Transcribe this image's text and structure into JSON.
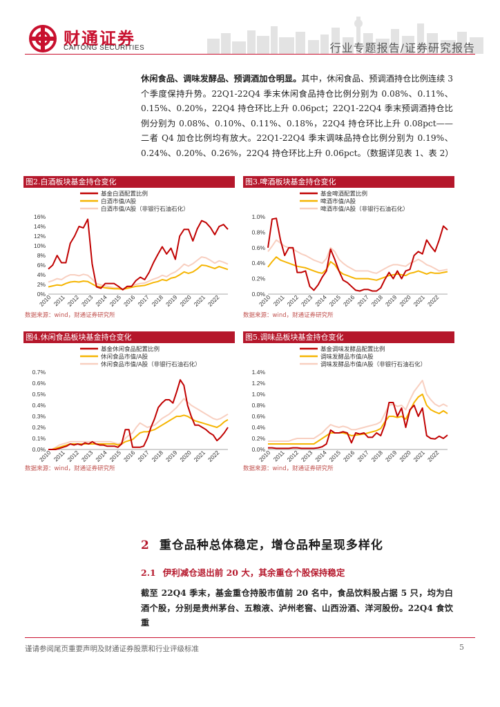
{
  "header": {
    "logo_cn": "财通证券",
    "logo_en": "CAITONG SECURITIES",
    "report_type": "行业专题报告/证券研究报告",
    "brand_color": "#c8102e"
  },
  "intro": {
    "lead": "休闲食品、调味发酵品、预调酒加仓明显。",
    "text": "其中，休闲食品、预调酒持仓比例连续 3 个季度保持升势。22Q1-22Q4 季末休闲食品持仓比例分别为 0.08%、0.11%、0.15%、0.20%，22Q4 持仓环比上升 0.06pct；22Q1-22Q4 季末预调酒持仓比例分别为 0.08%、0.10%、0.11%、0.18%，22Q4 持仓环比上升 0.08pct——二者 Q4 加仓比例均有放大。22Q1-22Q4 季末调味品持仓比例分别为 0.19%、0.24%、0.20%、0.26%，22Q4 持仓环比上升 0.06pct。（数据详见表 1、表 2）"
  },
  "chart_data": [
    {
      "type": "line",
      "title": "图2.白酒板块基金持仓变化",
      "source": "数据来源：wind，财通证券研究所",
      "x_ticks": [
        "2010",
        "2011",
        "2012",
        "2013",
        "2014",
        "2015",
        "2016",
        "2017",
        "2018",
        "2019",
        "2020",
        "2021",
        "2022"
      ],
      "ylim": [
        0,
        16
      ],
      "y_ticks": [
        "0%",
        "2%",
        "4%",
        "6%",
        "8%",
        "10%",
        "12%",
        "14%",
        "16%"
      ],
      "legend_position": "top",
      "series": [
        {
          "name": "基金白酒配置比例",
          "color": "#c00000",
          "values": [
            5.2,
            6,
            8,
            6.5,
            6.5,
            10.5,
            12,
            14,
            13.7,
            15.5,
            6.3,
            1.5,
            1.2,
            2.2,
            2.2,
            2.2,
            1.6,
            0.9,
            1.6,
            1.6,
            2.8,
            3.5,
            3,
            4.5,
            6.5,
            8.2,
            9.8,
            8.3,
            9.5,
            7.2,
            12,
            13.4,
            13.4,
            11,
            13.5,
            15.2,
            14.8,
            13.8,
            12.3,
            14,
            14.4,
            13.4
          ]
        },
        {
          "name": "白酒市值/A股",
          "color": "#f5b400",
          "values": [
            1.5,
            1.7,
            1.9,
            1.8,
            2.2,
            2.5,
            2.6,
            2.5,
            2.7,
            2.6,
            2.1,
            1.6,
            1.5,
            1.3,
            1.2,
            1.1,
            1.1,
            1.0,
            1.2,
            1.4,
            1.6,
            1.7,
            1.8,
            2.1,
            2.4,
            2.6,
            3.0,
            2.8,
            3.3,
            3.5,
            4.0,
            4.6,
            4.3,
            4.6,
            5.2,
            6.0,
            5.9,
            5.6,
            5.3,
            5.7,
            5.4,
            5.1
          ]
        },
        {
          "name": "白酒市值/A股（非银行石油石化）",
          "color": "#f8cfc0",
          "values": [
            2.5,
            2.8,
            3.2,
            3.0,
            3.6,
            4.0,
            4.0,
            3.8,
            4.1,
            3.9,
            3.1,
            2.2,
            1.9,
            1.7,
            1.5,
            1.3,
            1.3,
            1.1,
            1.4,
            1.7,
            2.0,
            2.2,
            2.3,
            2.7,
            3.1,
            3.4,
            3.9,
            3.6,
            4.2,
            4.6,
            5.3,
            6.2,
            5.8,
            6.3,
            7.0,
            7.7,
            7.5,
            7.0,
            6.4,
            6.9,
            6.6,
            6.2
          ]
        }
      ]
    },
    {
      "type": "line",
      "title": "图3.啤酒板块基金持仓变化",
      "source": "数据来源：wind，财通证券研究所",
      "x_ticks": [
        "2010",
        "2011",
        "2012",
        "2013",
        "2014",
        "2015",
        "2016",
        "2017",
        "2018",
        "2019",
        "2020",
        "2021",
        "2022"
      ],
      "ylim": [
        0,
        1
      ],
      "y_ticks": [
        "0.0%",
        "0.2%",
        "0.4%",
        "0.6%",
        "0.8%",
        "1.0%"
      ],
      "legend_position": "top",
      "series": [
        {
          "name": "基金啤酒配置比例",
          "color": "#c00000",
          "values": [
            0.6,
            0.97,
            0.98,
            0.7,
            0.5,
            0.6,
            0.6,
            0.28,
            0.28,
            0.3,
            0.1,
            0.05,
            0.12,
            0.22,
            0.3,
            0.58,
            0.45,
            0.3,
            0.18,
            0.15,
            0.1,
            0.05,
            0.04,
            0.06,
            0.06,
            0.04,
            0.04,
            0.08,
            0.19,
            0.28,
            0.2,
            0.3,
            0.2,
            0.3,
            0.32,
            0.5,
            0.55,
            0.52,
            0.7,
            0.62,
            0.55,
            0.7,
            0.88,
            0.83
          ]
        },
        {
          "name": "啤酒市值/A股",
          "color": "#f5b400",
          "values": [
            0.35,
            0.42,
            0.48,
            0.44,
            0.42,
            0.4,
            0.38,
            0.36,
            0.35,
            0.34,
            0.32,
            0.3,
            0.28,
            0.27,
            0.32,
            0.42,
            0.38,
            0.3,
            0.26,
            0.24,
            0.22,
            0.2,
            0.2,
            0.2,
            0.2,
            0.19,
            0.18,
            0.2,
            0.22,
            0.24,
            0.25,
            0.26,
            0.25,
            0.24,
            0.27,
            0.28,
            0.3,
            0.28,
            0.26,
            0.28,
            0.27,
            0.27,
            0.28,
            0.29
          ]
        },
        {
          "name": "啤酒市值/A股（非银行石油石化）",
          "color": "#f8cfc0",
          "values": [
            0.55,
            0.62,
            0.7,
            0.66,
            0.62,
            0.6,
            0.58,
            0.55,
            0.52,
            0.5,
            0.47,
            0.44,
            0.42,
            0.4,
            0.46,
            0.6,
            0.55,
            0.45,
            0.4,
            0.36,
            0.33,
            0.3,
            0.3,
            0.3,
            0.3,
            0.28,
            0.27,
            0.3,
            0.33,
            0.36,
            0.38,
            0.38,
            0.37,
            0.36,
            0.4,
            0.42,
            0.45,
            0.42,
            0.38,
            0.36,
            0.33,
            0.3,
            0.31,
            0.32
          ]
        }
      ]
    },
    {
      "type": "line",
      "title": "图4.休闲食品板块基金持仓变化",
      "source": "数据来源：wind，财通证券研究所",
      "x_ticks": [
        "2010",
        "2011",
        "2012",
        "2013",
        "2014",
        "2015",
        "2016",
        "2017",
        "2018",
        "2019",
        "2020",
        "2021",
        "2022"
      ],
      "ylim": [
        0,
        0.7
      ],
      "y_ticks": [
        "0.0%",
        "0.1%",
        "0.2%",
        "0.3%",
        "0.4%",
        "0.5%",
        "0.6%",
        "0.7%"
      ],
      "legend_position": "top",
      "series": [
        {
          "name": "基金休闲食品配置比例",
          "color": "#c00000",
          "values": [
            0.0,
            0.0,
            0.0,
            0.01,
            0.02,
            0.03,
            0.05,
            0.04,
            0.05,
            0.04,
            0.06,
            0.05,
            0.07,
            0.05,
            0.04,
            0.04,
            0.03,
            0.03,
            0.03,
            0.02,
            0.05,
            0.18,
            0.18,
            0.02,
            0.02,
            0.02,
            0.03,
            0.1,
            0.2,
            0.28,
            0.38,
            0.42,
            0.45,
            0.45,
            0.42,
            0.52,
            0.63,
            0.58,
            0.4,
            0.3,
            0.22,
            0.22,
            0.2,
            0.18,
            0.15,
            0.13,
            0.08,
            0.11,
            0.15,
            0.2
          ]
        },
        {
          "name": "休闲食品市值/A股",
          "color": "#f5b400",
          "values": [
            0.0,
            0.0,
            0.01,
            0.02,
            0.03,
            0.04,
            0.05,
            0.05,
            0.05,
            0.05,
            0.05,
            0.05,
            0.05,
            0.05,
            0.05,
            0.05,
            0.05,
            0.05,
            0.05,
            0.04,
            0.05,
            0.07,
            0.08,
            0.09,
            0.12,
            0.15,
            0.16,
            0.16,
            0.17,
            0.18,
            0.2,
            0.22,
            0.24,
            0.26,
            0.28,
            0.3,
            0.3,
            0.31,
            0.3,
            0.28,
            0.26,
            0.25,
            0.24,
            0.23,
            0.22,
            0.21,
            0.2,
            0.22,
            0.25,
            0.27
          ]
        },
        {
          "name": "休闲食品市值/A股（非银行石油石化）",
          "color": "#f8cfc0",
          "values": [
            0.0,
            0.0,
            0.02,
            0.04,
            0.05,
            0.06,
            0.07,
            0.07,
            0.07,
            0.07,
            0.07,
            0.07,
            0.07,
            0.07,
            0.07,
            0.07,
            0.07,
            0.07,
            0.06,
            0.05,
            0.06,
            0.1,
            0.13,
            0.15,
            0.2,
            0.24,
            0.22,
            0.2,
            0.21,
            0.22,
            0.25,
            0.28,
            0.3,
            0.32,
            0.35,
            0.38,
            0.42,
            0.46,
            0.43,
            0.4,
            0.38,
            0.36,
            0.34,
            0.32,
            0.3,
            0.28,
            0.27,
            0.28,
            0.3,
            0.32
          ]
        }
      ]
    },
    {
      "type": "line",
      "title": "图5.调味品板块基金持仓变化",
      "source": "数据来源：wind，财通证券研究所",
      "x_ticks": [
        "2010",
        "2011",
        "2012",
        "2013",
        "2014",
        "2015",
        "2016",
        "2017",
        "2018",
        "2019",
        "2020",
        "2021",
        "2022"
      ],
      "ylim": [
        0,
        1.4
      ],
      "y_ticks": [
        "0.0%",
        "0.2%",
        "0.4%",
        "0.6%",
        "0.8%",
        "1.0%",
        "1.2%",
        "1.4%"
      ],
      "legend_position": "top",
      "series": [
        {
          "name": "基金调味发酵品配置比例",
          "color": "#c00000",
          "values": [
            0.03,
            0.03,
            0.02,
            0.02,
            0.02,
            0.02,
            0.03,
            0.03,
            0.02,
            0.02,
            0.02,
            0.02,
            0.03,
            0.05,
            0.1,
            0.35,
            0.3,
            0.3,
            0.32,
            0.3,
            0.12,
            0.3,
            0.28,
            0.3,
            0.22,
            0.22,
            0.3,
            0.25,
            0.45,
            0.85,
            0.85,
            0.6,
            0.75,
            0.4,
            0.72,
            0.8,
            0.6,
            0.75,
            0.25,
            0.2,
            0.19,
            0.24,
            0.2,
            0.26
          ]
        },
        {
          "name": "调味发酵品市值/A股",
          "color": "#f5b400",
          "values": [
            0.1,
            0.1,
            0.1,
            0.1,
            0.1,
            0.1,
            0.1,
            0.1,
            0.1,
            0.1,
            0.1,
            0.1,
            0.15,
            0.2,
            0.25,
            0.3,
            0.3,
            0.3,
            0.3,
            0.28,
            0.25,
            0.26,
            0.27,
            0.28,
            0.3,
            0.32,
            0.34,
            0.38,
            0.5,
            0.6,
            0.6,
            0.58,
            0.6,
            0.55,
            0.7,
            0.85,
            0.95,
            1.0,
            0.8,
            0.72,
            0.68,
            0.65,
            0.7,
            0.65
          ]
        },
        {
          "name": "调味发酵品市值/A股（非银行石油石化）",
          "color": "#f8cfc0",
          "values": [
            0.15,
            0.15,
            0.15,
            0.15,
            0.15,
            0.15,
            0.18,
            0.2,
            0.2,
            0.2,
            0.2,
            0.2,
            0.25,
            0.3,
            0.38,
            0.45,
            0.42,
            0.4,
            0.42,
            0.4,
            0.36,
            0.36,
            0.38,
            0.4,
            0.42,
            0.44,
            0.46,
            0.5,
            0.65,
            0.8,
            0.82,
            0.78,
            0.8,
            0.72,
            0.9,
            1.05,
            1.15,
            1.25,
            1.0,
            0.9,
            0.82,
            0.78,
            0.82,
            0.78
          ]
        }
      ]
    }
  ],
  "section2": {
    "number": "2",
    "title": "重仓品种总体稳定，增仓品种呈现多样化",
    "sub_number": "2.1",
    "sub_title": "伊利减仓退出前 20 大，其余重仓个股保持稳定",
    "text": "截至 22Q4 季末，基金重仓持股市值前 20 名中，食品饮料股占据 5 只，均为白酒个股，分别是贵州茅台、五粮液、泸州老窖、山西汾酒、洋河股份。22Q4 食饮重"
  },
  "footer": {
    "disclaimer": "谨请参阅尾页重要声明及财通证券股票和行业评级标准",
    "page": "5"
  }
}
